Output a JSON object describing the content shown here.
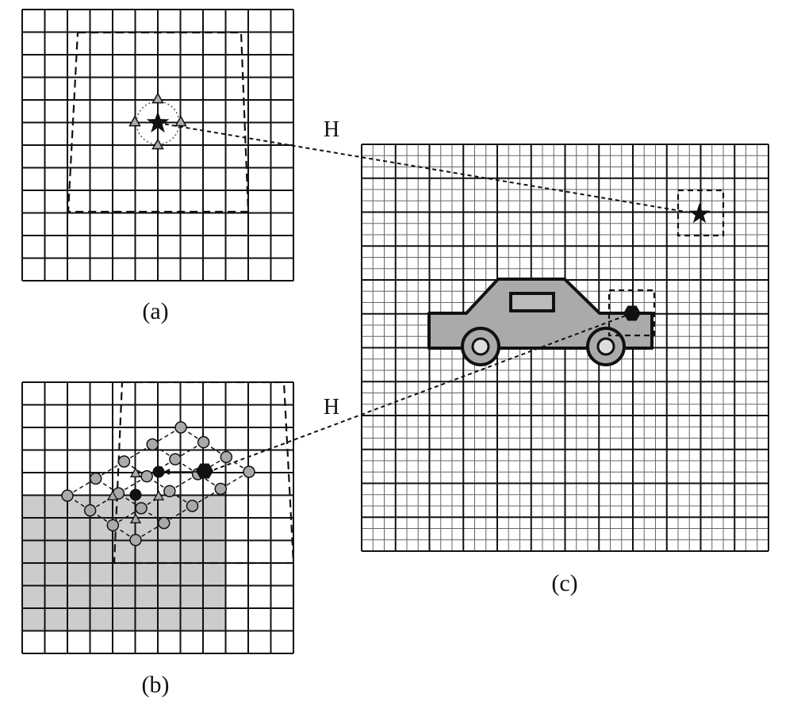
{
  "panels": {
    "a": {
      "caption": "(a)"
    },
    "b": {
      "caption": "(b)"
    },
    "c": {
      "caption": "(c)"
    }
  },
  "mappings": {
    "top": {
      "label": "H"
    },
    "bottom": {
      "label": "H"
    }
  },
  "colors": {
    "grid": "#111111",
    "fine_grid": "#555555",
    "shade": "#cccccc",
    "marker": "#111111",
    "marker_fill_gray": "#aaaaaa"
  },
  "icons": {
    "star": "star-icon",
    "hexagon": "hexagon-icon",
    "car": "car-icon"
  }
}
